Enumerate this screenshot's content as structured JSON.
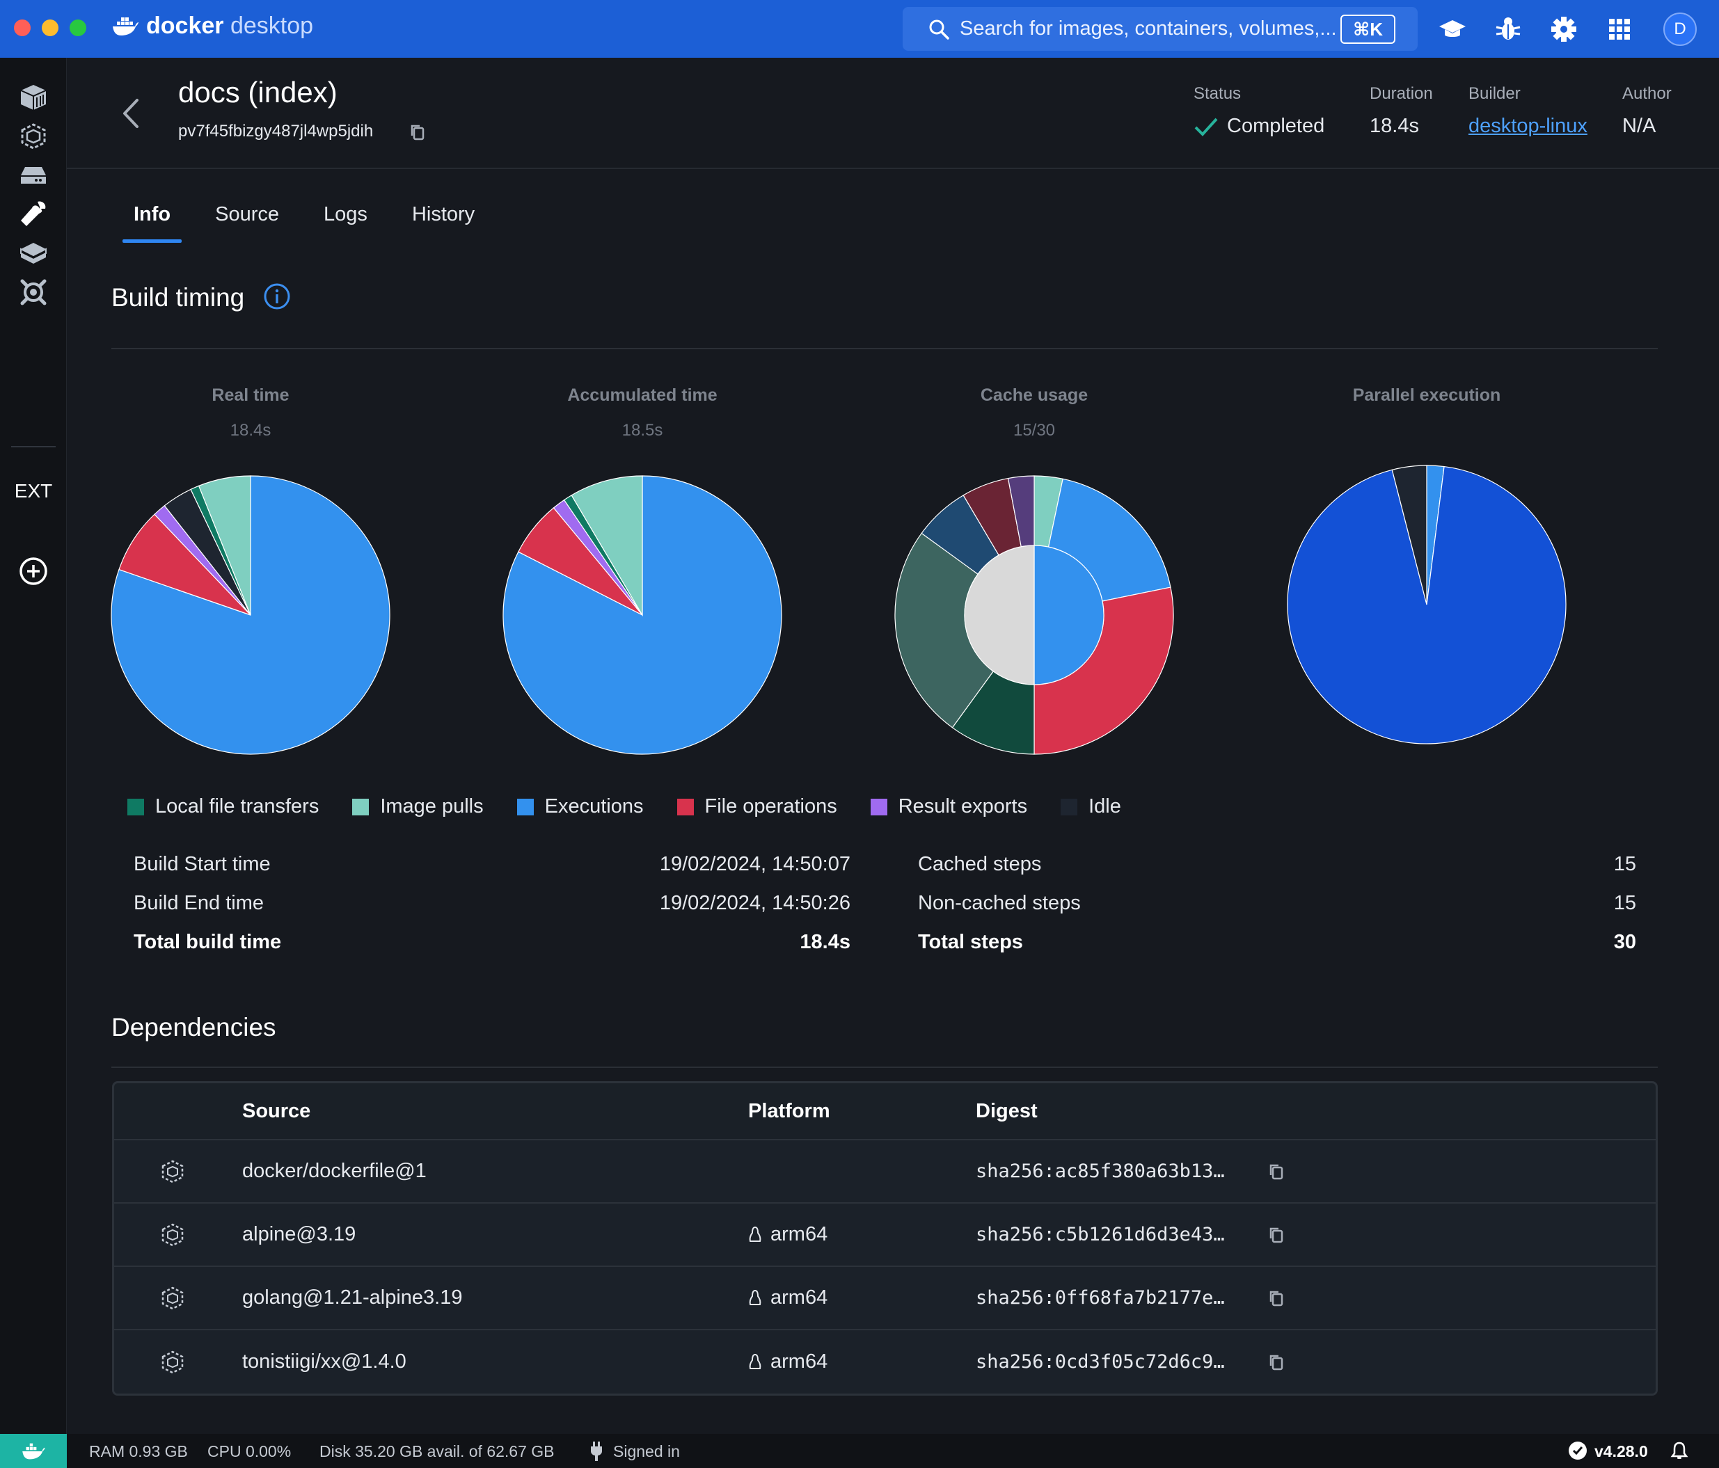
{
  "app": {
    "name_bold": "docker",
    "name_light": " desktop",
    "search_placeholder": "Search for images, containers, volumes,...",
    "search_shortcut": "⌘K",
    "avatar_initial": "D"
  },
  "sidebar": {
    "ext_label": "EXT",
    "icons": [
      "containers-icon",
      "images-icon",
      "volumes-icon",
      "builds-icon",
      "docker-scout-icon",
      "dev-environments-icon"
    ]
  },
  "header": {
    "title": "docs (index)",
    "build_id": "pv7f45fbizgy487jl4wp5jdih",
    "status_label": "Status",
    "status_value": "Completed",
    "duration_label": "Duration",
    "duration_value": "18.4s",
    "builder_label": "Builder",
    "builder_value": "desktop-linux",
    "author_label": "Author",
    "author_value": "N/A"
  },
  "tabs": [
    {
      "label": "Info",
      "active": true
    },
    {
      "label": "Source",
      "active": false
    },
    {
      "label": "Logs",
      "active": false
    },
    {
      "label": "History",
      "active": false
    }
  ],
  "build_timing": {
    "title": "Build timing"
  },
  "colors": {
    "local_file_transfers": "#0f7a63",
    "image_pulls": "#7fcfc0",
    "executions": "#3391ee",
    "file_operations": "#d8334d",
    "result_exports": "#a06bf0",
    "idle": "#1e2530",
    "parallel": "#1351d6"
  },
  "chart_data": [
    {
      "type": "pie",
      "title": "Real time",
      "subtitle": "18.4s",
      "slices": [
        {
          "name": "Executions",
          "value": 79.5
        },
        {
          "name": "File operations",
          "value": 7.5
        },
        {
          "name": "Result exports",
          "value": 1.5
        },
        {
          "name": "Idle",
          "value": 3.5
        },
        {
          "name": "Local file transfers",
          "value": 1.0
        },
        {
          "name": "Image pulls",
          "value": 6.0
        }
      ]
    },
    {
      "type": "pie",
      "title": "Accumulated time",
      "subtitle": "18.5s",
      "slices": [
        {
          "name": "Executions",
          "value": 82.5
        },
        {
          "name": "File operations",
          "value": 6.5
        },
        {
          "name": "Result exports",
          "value": 1.5
        },
        {
          "name": "Local file transfers",
          "value": 1.0
        },
        {
          "name": "Image pulls",
          "value": 8.5
        }
      ]
    },
    {
      "type": "pie",
      "title": "Cache usage",
      "subtitle": "15/30",
      "inner": [
        {
          "name": "Non-cached",
          "value": 50,
          "color": "#3391ee"
        },
        {
          "name": "Cached",
          "value": 50,
          "color": "#d9d9d9"
        }
      ],
      "slices": [
        {
          "value": 3.3,
          "color": "#7fcfc0"
        },
        {
          "value": 18.5,
          "color": "#3391ee"
        },
        {
          "value": 28.2,
          "color": "#d8334d"
        },
        {
          "value": 10.0,
          "color": "#114a3d"
        },
        {
          "value": 25.0,
          "color": "#3d6560"
        },
        {
          "value": 6.5,
          "color": "#1f4a72"
        },
        {
          "value": 5.5,
          "color": "#6a2434"
        },
        {
          "value": 3.0,
          "color": "#553d7c"
        }
      ]
    },
    {
      "type": "pie",
      "title": "Parallel execution",
      "subtitle": "",
      "slices": [
        {
          "value": 2.0,
          "color": "#3391ee"
        },
        {
          "value": 94.0,
          "color": "#1351d6"
        },
        {
          "value": 4.0,
          "color": "#1e2530"
        }
      ]
    }
  ],
  "legend": [
    {
      "label": "Local file transfers",
      "color": "#0f7a63"
    },
    {
      "label": "Image pulls",
      "color": "#7fcfc0"
    },
    {
      "label": "Executions",
      "color": "#3391ee"
    },
    {
      "label": "File operations",
      "color": "#d8334d"
    },
    {
      "label": "Result exports",
      "color": "#a06bf0"
    },
    {
      "label": "Idle",
      "color": "#1e2530"
    }
  ],
  "stats_left": [
    {
      "label": "Build Start time",
      "value": "19/02/2024, 14:50:07",
      "bold": false
    },
    {
      "label": "Build End time",
      "value": "19/02/2024, 14:50:26",
      "bold": false
    },
    {
      "label": "Total build time",
      "value": "18.4s",
      "bold": true
    }
  ],
  "stats_right": [
    {
      "label": "Cached steps",
      "value": "15",
      "bold": false
    },
    {
      "label": "Non-cached steps",
      "value": "15",
      "bold": false
    },
    {
      "label": "Total steps",
      "value": "30",
      "bold": true
    }
  ],
  "dependencies": {
    "title": "Dependencies",
    "columns": {
      "source": "Source",
      "platform": "Platform",
      "digest": "Digest"
    },
    "rows": [
      {
        "source": "docker/dockerfile@1",
        "platform": "",
        "digest": "sha256:ac85f380a63b13…"
      },
      {
        "source": "alpine@3.19",
        "platform": "arm64",
        "digest": "sha256:c5b1261d6d3e43…"
      },
      {
        "source": "golang@1.21-alpine3.19",
        "platform": "arm64",
        "digest": "sha256:0ff68fa7b2177e…"
      },
      {
        "source": "tonistiigi/xx@1.4.0",
        "platform": "arm64",
        "digest": "sha256:0cd3f05c72d6c9…"
      }
    ]
  },
  "statusbar": {
    "ram": "RAM 0.93 GB",
    "cpu": "CPU 0.00%",
    "disk": "Disk 35.20 GB avail. of 62.67 GB",
    "signed": "Signed in",
    "version": "v4.28.0"
  }
}
